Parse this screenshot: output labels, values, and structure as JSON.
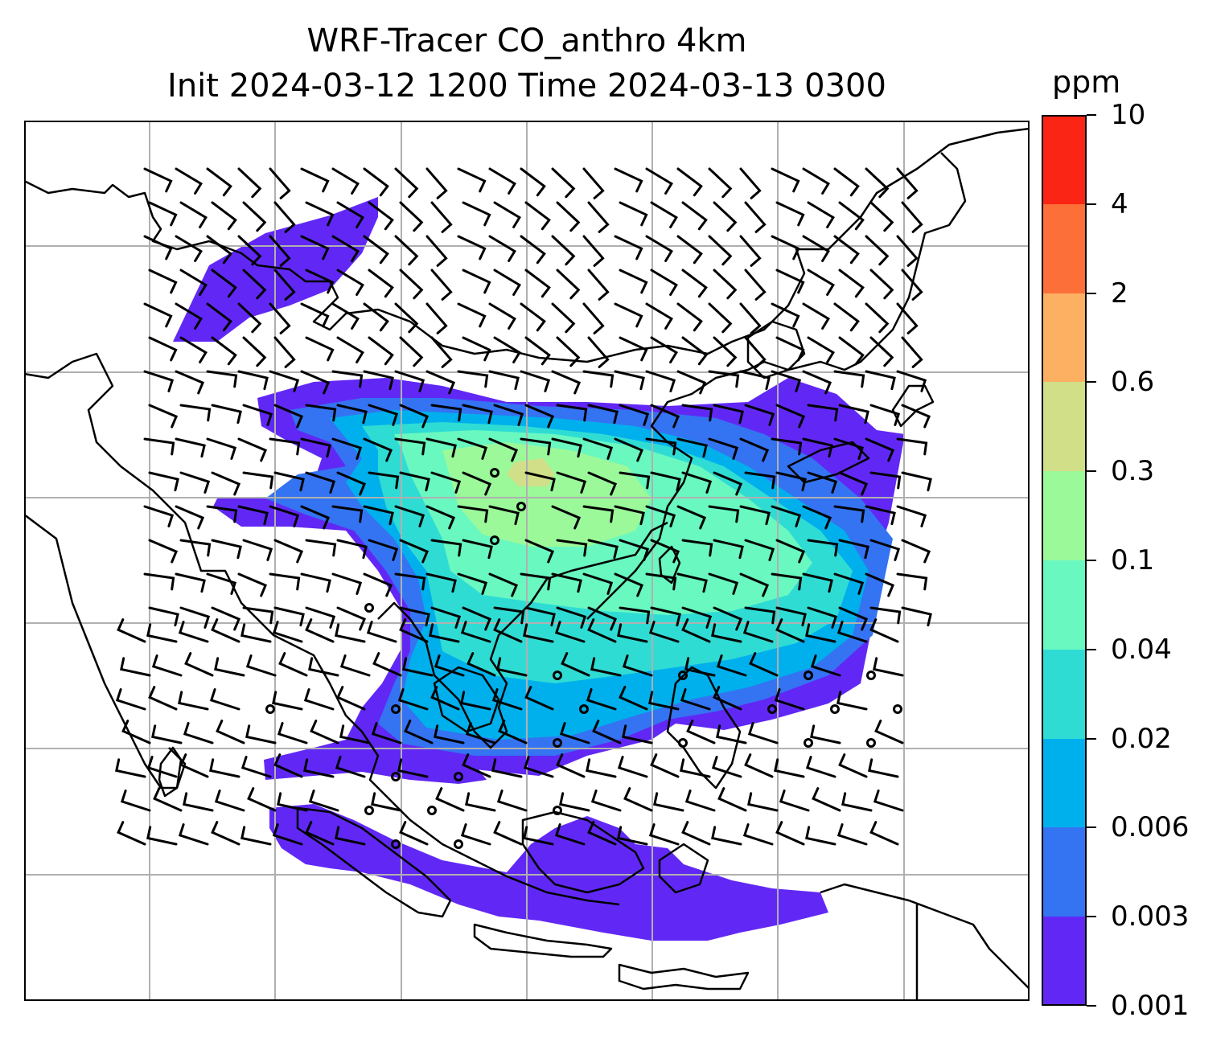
{
  "title": {
    "line1": "WRF-Tracer CO_anthro 4km",
    "line2": "Init 2024-03-12 1200 Time 2024-03-13 0300"
  },
  "colorbar": {
    "unit": "ppm",
    "levels": [
      "0.001",
      "0.003",
      "0.006",
      "0.02",
      "0.04",
      "0.1",
      "0.3",
      "0.6",
      "2",
      "4",
      "10"
    ],
    "colors": [
      "#6128f5",
      "#3473f2",
      "#00b0ec",
      "#2fdcd4",
      "#68f8c0",
      "#9bf99a",
      "#d1df88",
      "#fdb062",
      "#fd6f38",
      "#fb2515"
    ]
  },
  "map": {
    "grid": "on",
    "background": "#ffffff",
    "gridline_color": "#b0b0b0",
    "coastline_color": "#000000",
    "barb_color": "#000000"
  }
}
